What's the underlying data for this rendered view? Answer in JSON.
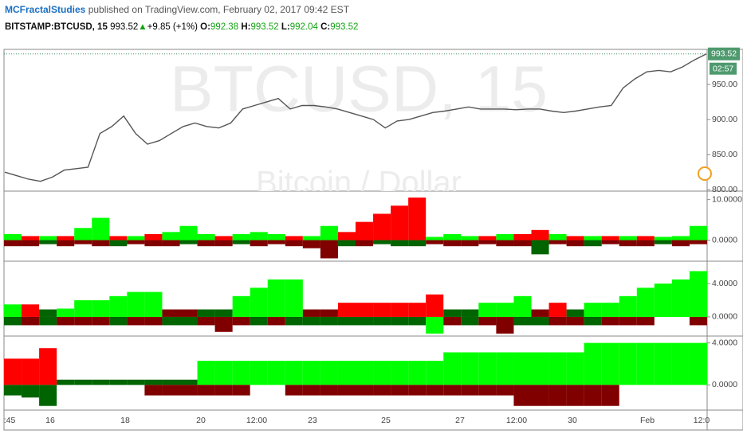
{
  "header": {
    "author": "MCFractalStudies",
    "published": "published on TradingView.com, February 02, 2017 09:42 EST",
    "symbol": "BITSTAMP:BTCUSD, 15",
    "last": "993.52",
    "arrow": "▲",
    "change": "+9.85 (+1%)",
    "o_label": "O:",
    "o": "992.38",
    "h_label": "H:",
    "h": "993.52",
    "l_label": "L:",
    "l": "992.04",
    "c_label": "C:",
    "c": "993.52"
  },
  "x_axis": {
    "labels": [
      ":45",
      "16",
      "18",
      "20",
      "12:00",
      "23",
      "25",
      "27",
      "12:00",
      "30",
      "Feb",
      "12:0"
    ]
  },
  "chart_data": [
    {
      "type": "line",
      "watermark": "BTCUSD, 15",
      "watermark_subtitle": "Bitcoin / Dollar",
      "color": "#555555",
      "values": [
        825,
        820,
        815,
        812,
        818,
        828,
        830,
        832,
        880,
        890,
        905,
        880,
        865,
        870,
        880,
        890,
        895,
        890,
        888,
        895,
        915,
        920,
        925,
        930,
        915,
        920,
        920,
        918,
        915,
        910,
        905,
        900,
        888,
        898,
        900,
        905,
        910,
        912,
        915,
        918,
        915,
        915,
        915,
        914,
        915,
        915,
        912,
        910,
        912,
        915,
        918,
        920,
        945,
        958,
        968,
        970,
        968,
        975,
        985,
        993.52
      ],
      "ylim": [
        798,
        1000
      ],
      "yticks": [
        {
          "value": 800,
          "label": "800.00"
        },
        {
          "value": 850,
          "label": "850.00"
        },
        {
          "value": 900,
          "label": "900.00"
        },
        {
          "value": 950,
          "label": "950.00"
        }
      ],
      "price_label": {
        "value": 993.52,
        "label": "993.52"
      },
      "countdown": "02:57"
    },
    {
      "type": "bar",
      "ylim": [
        -5.2,
        11.7
      ],
      "yticks": [
        {
          "value": 0,
          "label": "0.0000"
        },
        {
          "value": 10,
          "label": "10.0000"
        }
      ],
      "series": [
        {
          "values": [
            1.5,
            1,
            1,
            1,
            3,
            5.5,
            1,
            1,
            1.5,
            2,
            3.5,
            1.5,
            1,
            1.5,
            2,
            1.5,
            1,
            1,
            3.5,
            2,
            4.5,
            6.5,
            8.5,
            10.5,
            0.8,
            1.5,
            1,
            1,
            1.5,
            1.5,
            2.5,
            1.5,
            1,
            1,
            1,
            1,
            1,
            0.8,
            1,
            3.5
          ],
          "colors": [
            "#00ff00",
            "#ff0000",
            "#00ff00",
            "#ff0000",
            "#00ff00",
            "#00ff00",
            "#ff0000",
            "#00ff00",
            "#ff0000",
            "#00ff00",
            "#00ff00",
            "#00ff00",
            "#ff0000",
            "#00ff00",
            "#00ff00",
            "#00ff00",
            "#ff0000",
            "#00ff00",
            "#00ff00",
            "#ff0000",
            "#ff0000",
            "#ff0000",
            "#ff0000",
            "#ff0000",
            "#00ff00",
            "#00ff00",
            "#00ff00",
            "#ff0000",
            "#00ff00",
            "#ff0000",
            "#ff0000",
            "#00ff00",
            "#ff0000",
            "#00ff00",
            "#ff0000",
            "#00ff00",
            "#ff0000",
            "#00ff00",
            "#00ff00",
            "#00ff00"
          ]
        },
        {
          "values": [
            -1.5,
            -1.5,
            -1,
            -1.5,
            -1,
            -1.5,
            -1.5,
            -1,
            -1.5,
            -1.5,
            -1,
            -1.5,
            -1.5,
            -1,
            -1.5,
            -1,
            -1.5,
            -2,
            -4.5,
            -1.5,
            -1.5,
            -1,
            -1.5,
            -1.5,
            -1,
            -1.5,
            -1.5,
            -1,
            -1.5,
            -1.5,
            -3.5,
            -1,
            -1.5,
            -1.5,
            -1,
            -1.5,
            -1.5,
            -1,
            -1.5,
            -1
          ],
          "colors": [
            "#800000",
            "#800000",
            "#006400",
            "#800000",
            "#800000",
            "#800000",
            "#006400",
            "#800000",
            "#800000",
            "#800000",
            "#006400",
            "#800000",
            "#800000",
            "#006400",
            "#800000",
            "#800000",
            "#800000",
            "#800000",
            "#800000",
            "#006400",
            "#800000",
            "#006400",
            "#006400",
            "#006400",
            "#800000",
            "#800000",
            "#800000",
            "#800000",
            "#800000",
            "#800000",
            "#006400",
            "#800000",
            "#800000",
            "#006400",
            "#800000",
            "#800000",
            "#800000",
            "#006400",
            "#800000",
            "#800000"
          ]
        }
      ]
    },
    {
      "type": "bar",
      "ylim": [
        -2.3,
        6.5
      ],
      "yticks": [
        {
          "value": 0,
          "label": "0.0000"
        },
        {
          "value": 4,
          "label": "4.0000"
        }
      ],
      "series": [
        {
          "values": [
            1.5,
            1.5,
            0.9,
            1,
            2,
            2,
            2.5,
            3,
            3,
            0.9,
            0.9,
            0.9,
            0.9,
            2.5,
            3.5,
            4.5,
            4.5,
            0.9,
            0.9,
            1.7,
            1.7,
            1.7,
            1.7,
            1.7,
            2.7,
            0.9,
            0.9,
            1.7,
            1.7,
            2.5,
            0.9,
            1.7,
            0.9,
            1.7,
            1.7,
            2.5,
            3.5,
            4,
            4.5,
            5.5
          ],
          "colors": [
            "#00ff00",
            "#ff0000",
            "#006400",
            "#00ff00",
            "#00ff00",
            "#00ff00",
            "#00ff00",
            "#00ff00",
            "#00ff00",
            "#800000",
            "#800000",
            "#006400",
            "#006400",
            "#00ff00",
            "#00ff00",
            "#00ff00",
            "#00ff00",
            "#800000",
            "#800000",
            "#ff0000",
            "#ff0000",
            "#ff0000",
            "#ff0000",
            "#ff0000",
            "#ff0000",
            "#006400",
            "#006400",
            "#00ff00",
            "#00ff00",
            "#00ff00",
            "#800000",
            "#ff0000",
            "#006400",
            "#00ff00",
            "#00ff00",
            "#00ff00",
            "#00ff00",
            "#00ff00",
            "#00ff00",
            "#00ff00"
          ]
        },
        {
          "values": [
            -1,
            -1,
            -1,
            -1,
            -1,
            -1,
            -1,
            -1,
            -1,
            -1,
            -1,
            -1,
            -1.8,
            -1,
            -1,
            -1,
            -1,
            -1,
            -1,
            -1,
            -1,
            -1,
            -1,
            -1,
            -2,
            -1,
            -1,
            -1,
            -2,
            -1,
            -1,
            -1,
            -1,
            -1,
            -1,
            -1,
            -1,
            null,
            null,
            -1
          ],
          "colors": [
            "#006400",
            "#800000",
            "#006400",
            "#800000",
            "#800000",
            "#800000",
            "#006400",
            "#800000",
            "#800000",
            "#006400",
            "#006400",
            "#800000",
            "#800000",
            "#800000",
            "#006400",
            "#800000",
            "#006400",
            "#006400",
            "#006400",
            "#006400",
            "#006400",
            "#006400",
            "#006400",
            "#006400",
            "#00ff00",
            "#800000",
            "#006400",
            "#800000",
            "#800000",
            "#006400",
            "#006400",
            "#800000",
            "#800000",
            "#006400",
            "#800000",
            "#800000",
            "#800000",
            "#800000",
            "#800000",
            "#800000"
          ]
        }
      ]
    },
    {
      "type": "bar",
      "ylim": [
        -2.4,
        4.5
      ],
      "yticks": [
        {
          "value": 0,
          "label": "0.0000"
        },
        {
          "value": 4,
          "label": "4.0000"
        }
      ],
      "series": [
        {
          "values": [
            2.5,
            2.5,
            3.5,
            0.5,
            0.5,
            0.5,
            0.5,
            0.5,
            0.5,
            0.5,
            0.5,
            2.3,
            2.3,
            2.3,
            2.3,
            2.3,
            2.3,
            2.3,
            2.3,
            2.3,
            2.3,
            2.3,
            2.3,
            2.3,
            2.3,
            3.1,
            3.1,
            3.1,
            3.1,
            3.1,
            3.1,
            3.1,
            3.1,
            4,
            4,
            4,
            4,
            4,
            4,
            4
          ],
          "colors": [
            "#ff0000",
            "#ff0000",
            "#ff0000",
            "#006400",
            "#006400",
            "#006400",
            "#006400",
            "#006400",
            "#006400",
            "#006400",
            "#006400",
            "#00ff00",
            "#00ff00",
            "#00ff00",
            "#00ff00",
            "#00ff00",
            "#00ff00",
            "#00ff00",
            "#00ff00",
            "#00ff00",
            "#00ff00",
            "#00ff00",
            "#00ff00",
            "#00ff00",
            "#00ff00",
            "#00ff00",
            "#00ff00",
            "#00ff00",
            "#00ff00",
            "#00ff00",
            "#00ff00",
            "#00ff00",
            "#00ff00",
            "#00ff00",
            "#00ff00",
            "#00ff00",
            "#00ff00",
            "#00ff00",
            "#00ff00",
            "#00ff00"
          ]
        },
        {
          "values": [
            -1,
            -1.2,
            -2,
            null,
            null,
            null,
            null,
            null,
            -1,
            -1,
            -1,
            -1,
            -1,
            -1,
            null,
            null,
            -1,
            -1,
            -1,
            -1,
            -1,
            -1,
            -1,
            -1,
            -1,
            -1,
            -1,
            -1,
            -1,
            -2,
            -2,
            -2,
            -2,
            -2,
            -2,
            null,
            null,
            null,
            null,
            null
          ],
          "colors": [
            "#006400",
            "#006400",
            "#006400",
            "#006400",
            "#006400",
            "#006400",
            "#006400",
            "#006400",
            "#800000",
            "#800000",
            "#800000",
            "#800000",
            "#800000",
            "#800000",
            "#800000",
            "#800000",
            "#800000",
            "#800000",
            "#800000",
            "#800000",
            "#800000",
            "#800000",
            "#800000",
            "#800000",
            "#800000",
            "#800000",
            "#800000",
            "#800000",
            "#800000",
            "#800000",
            "#800000",
            "#800000",
            "#800000",
            "#800000",
            "#800000",
            "#800000",
            "#800000",
            "#800000",
            "#800000",
            "#800000"
          ]
        }
      ]
    }
  ]
}
